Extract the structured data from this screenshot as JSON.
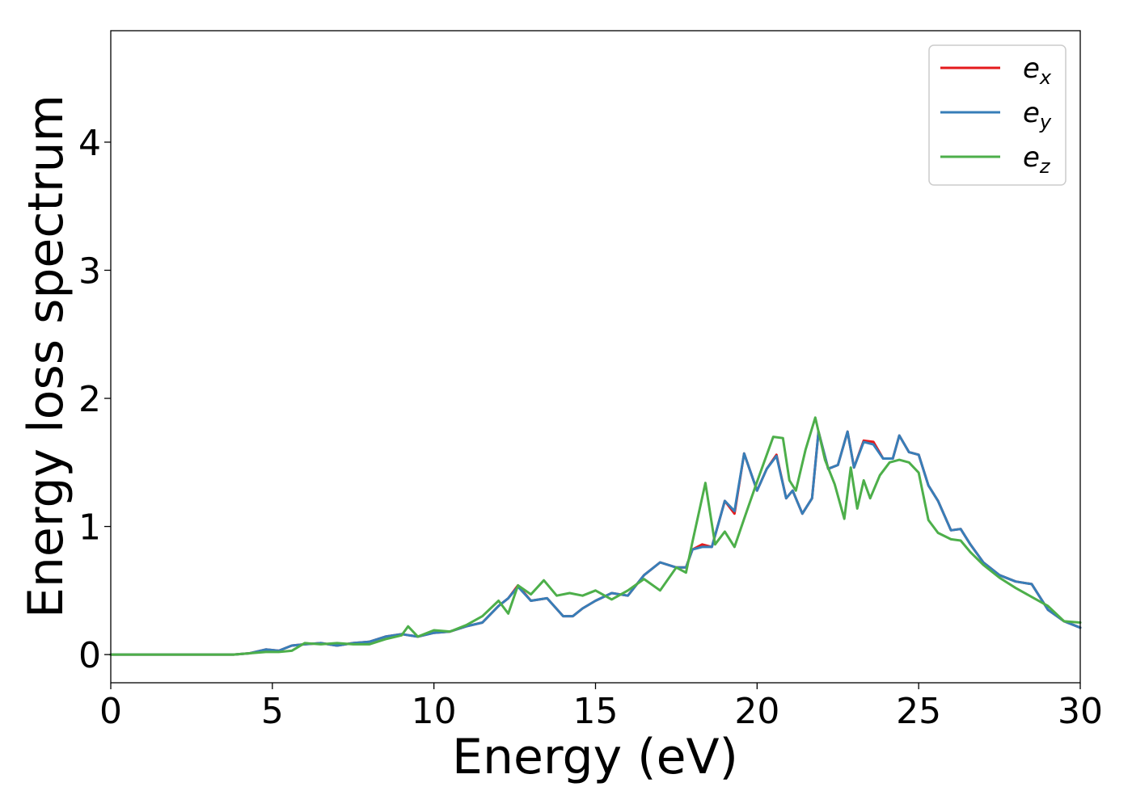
{
  "chart_data": {
    "type": "line",
    "title": "",
    "xlabel": "Energy (eV)",
    "ylabel": "Energy loss spectrum",
    "xlim": [
      0,
      30
    ],
    "ylim": [
      -0.22,
      4.87
    ],
    "xticks": [
      0,
      5,
      10,
      15,
      20,
      25,
      30
    ],
    "yticks": [
      0,
      1,
      2,
      3,
      4
    ],
    "grid": false,
    "legend_position": "top-right",
    "series": [
      {
        "name": "e_x",
        "legend": {
          "base": "e",
          "sub": "x"
        },
        "color": "#e41a1c",
        "x": [
          0,
          3.8,
          4.3,
          4.8,
          5.2,
          5.6,
          6,
          6.5,
          7,
          7.5,
          8,
          8.5,
          9,
          9.5,
          10,
          10.5,
          11,
          11.5,
          12,
          12.3,
          12.6,
          13,
          13.5,
          14,
          14.3,
          14.6,
          15,
          15.5,
          16,
          16.5,
          17,
          17.5,
          17.8,
          18,
          18.3,
          18.6,
          19,
          19.3,
          19.6,
          20,
          20.3,
          20.6,
          20.9,
          21.1,
          21.4,
          21.7,
          21.9,
          22.2,
          22.5,
          22.8,
          23,
          23.3,
          23.6,
          23.9,
          24.2,
          24.4,
          24.7,
          25,
          25.3,
          25.6,
          26,
          26.3,
          26.6,
          27,
          27.5,
          28,
          28.5,
          29,
          29.5,
          30
        ],
        "y": [
          0,
          0,
          0.01,
          0.04,
          0.03,
          0.07,
          0.08,
          0.09,
          0.07,
          0.09,
          0.1,
          0.14,
          0.16,
          0.14,
          0.17,
          0.18,
          0.22,
          0.25,
          0.38,
          0.44,
          0.54,
          0.42,
          0.44,
          0.3,
          0.3,
          0.36,
          0.42,
          0.48,
          0.46,
          0.62,
          0.72,
          0.68,
          0.68,
          0.82,
          0.86,
          0.84,
          1.2,
          1.1,
          1.57,
          1.28,
          1.45,
          1.56,
          1.22,
          1.28,
          1.1,
          1.22,
          1.74,
          1.45,
          1.48,
          1.74,
          1.46,
          1.67,
          1.66,
          1.53,
          1.53,
          1.71,
          1.58,
          1.56,
          1.32,
          1.2,
          0.97,
          0.98,
          0.86,
          0.72,
          0.62,
          0.57,
          0.55,
          0.35,
          0.26,
          0.21
        ]
      },
      {
        "name": "e_y",
        "legend": {
          "base": "e",
          "sub": "y"
        },
        "color": "#377eb8",
        "x": [
          0,
          3.8,
          4.3,
          4.8,
          5.2,
          5.6,
          6,
          6.5,
          7,
          7.5,
          8,
          8.5,
          9,
          9.5,
          10,
          10.5,
          11,
          11.5,
          12,
          12.3,
          12.6,
          13,
          13.5,
          14,
          14.3,
          14.6,
          15,
          15.5,
          16,
          16.5,
          17,
          17.5,
          17.8,
          18,
          18.3,
          18.6,
          19,
          19.3,
          19.6,
          20,
          20.3,
          20.6,
          20.9,
          21.1,
          21.4,
          21.7,
          21.9,
          22.2,
          22.5,
          22.8,
          23,
          23.3,
          23.6,
          23.9,
          24.2,
          24.4,
          24.7,
          25,
          25.3,
          25.6,
          26,
          26.3,
          26.6,
          27,
          27.5,
          28,
          28.5,
          29,
          29.5,
          30
        ],
        "y": [
          0,
          0,
          0.01,
          0.04,
          0.03,
          0.07,
          0.08,
          0.09,
          0.07,
          0.09,
          0.1,
          0.14,
          0.16,
          0.14,
          0.17,
          0.18,
          0.22,
          0.25,
          0.38,
          0.44,
          0.53,
          0.42,
          0.44,
          0.3,
          0.3,
          0.36,
          0.42,
          0.48,
          0.46,
          0.62,
          0.72,
          0.68,
          0.68,
          0.82,
          0.84,
          0.84,
          1.2,
          1.12,
          1.57,
          1.28,
          1.45,
          1.55,
          1.22,
          1.28,
          1.1,
          1.22,
          1.74,
          1.45,
          1.48,
          1.74,
          1.46,
          1.66,
          1.64,
          1.53,
          1.53,
          1.71,
          1.58,
          1.56,
          1.32,
          1.2,
          0.97,
          0.98,
          0.86,
          0.72,
          0.62,
          0.57,
          0.55,
          0.35,
          0.26,
          0.21
        ]
      },
      {
        "name": "e_z",
        "legend": {
          "base": "e",
          "sub": "z"
        },
        "color": "#4daf4a",
        "x": [
          0,
          3.8,
          4.3,
          4.8,
          5.2,
          5.6,
          6,
          6.5,
          7,
          7.5,
          8,
          8.5,
          9,
          9.2,
          9.5,
          10,
          10.5,
          11,
          11.5,
          12,
          12.3,
          12.6,
          13,
          13.4,
          13.8,
          14.2,
          14.6,
          15,
          15.5,
          16,
          16.5,
          17,
          17.5,
          17.8,
          18,
          18.4,
          18.7,
          19,
          19.3,
          19.6,
          20,
          20.5,
          20.8,
          21,
          21.2,
          21.5,
          21.8,
          22.1,
          22.4,
          22.7,
          22.9,
          23.1,
          23.3,
          23.5,
          23.8,
          24.1,
          24.4,
          24.7,
          25,
          25.3,
          25.6,
          26,
          26.3,
          26.6,
          27,
          27.5,
          28,
          28.5,
          29,
          29.5,
          30
        ],
        "y": [
          0,
          0,
          0.01,
          0.02,
          0.02,
          0.03,
          0.09,
          0.08,
          0.09,
          0.08,
          0.08,
          0.12,
          0.15,
          0.22,
          0.14,
          0.19,
          0.18,
          0.23,
          0.3,
          0.42,
          0.32,
          0.54,
          0.47,
          0.58,
          0.46,
          0.48,
          0.46,
          0.5,
          0.43,
          0.5,
          0.59,
          0.5,
          0.68,
          0.64,
          0.88,
          1.34,
          0.86,
          0.96,
          0.84,
          1.06,
          1.35,
          1.7,
          1.69,
          1.36,
          1.28,
          1.6,
          1.85,
          1.52,
          1.33,
          1.06,
          1.46,
          1.14,
          1.36,
          1.22,
          1.4,
          1.5,
          1.52,
          1.5,
          1.42,
          1.05,
          0.95,
          0.9,
          0.89,
          0.8,
          0.7,
          0.6,
          0.52,
          0.45,
          0.38,
          0.26,
          0.25
        ]
      }
    ]
  }
}
